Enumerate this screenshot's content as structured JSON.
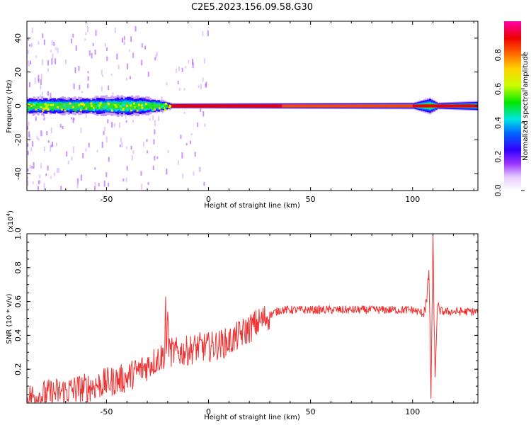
{
  "title": "C2E5.2023.156.09.58.G30",
  "chart_data": [
    {
      "type": "heatmap",
      "name": "spectrogram",
      "xlabel": "Height of straight line (km)",
      "ylabel": "Frequency (Hz)",
      "xlim": [
        -89,
        132
      ],
      "ylim": [
        -50,
        50
      ],
      "xticks": [
        -50,
        0,
        50,
        100
      ],
      "yticks": [
        -40,
        -20,
        0,
        20,
        40
      ],
      "colorbar": {
        "label": "Normalized spectral amplitude",
        "ticks": [
          "0.0",
          "0.2",
          "0.4",
          "0.6",
          "0.8"
        ],
        "range": [
          0,
          1
        ]
      },
      "band_half_width_hz": [
        {
          "x": -89,
          "w": 5
        },
        {
          "x": -60,
          "w": 5
        },
        {
          "x": -40,
          "w": 6
        },
        {
          "x": -30,
          "w": 5
        },
        {
          "x": -22,
          "w": 3
        },
        {
          "x": -18,
          "w": 1.5
        },
        {
          "x": 100,
          "w": 2
        },
        {
          "x": 108,
          "w": 5
        },
        {
          "x": 112,
          "w": 2
        },
        {
          "x": 132,
          "w": 3
        }
      ]
    },
    {
      "type": "line",
      "name": "snr",
      "xlabel": "Height of straight line (km)",
      "ylabel": "SNR (10 * v/v)",
      "y_multiplier": "(x10^4)",
      "xlim": [
        -89,
        132
      ],
      "ylim": [
        0,
        1.0
      ],
      "xticks": [
        -50,
        0,
        50,
        100
      ],
      "yticks": [
        "0.2",
        "0.4",
        "0.6",
        "0.8",
        "1.0"
      ],
      "color": "#ee3333",
      "series": [
        {
          "x": [
            -89,
            -80,
            -70,
            -60,
            -50,
            -40,
            -30,
            -25,
            -20,
            -15,
            -10,
            -5,
            0,
            10,
            20,
            30,
            35,
            40,
            50,
            60,
            70,
            80,
            90,
            100,
            105,
            107,
            108,
            109,
            110,
            111,
            112,
            115,
            120,
            132
          ],
          "y": [
            0.03,
            0.05,
            0.07,
            0.09,
            0.12,
            0.15,
            0.22,
            0.26,
            0.3,
            0.3,
            0.31,
            0.33,
            0.33,
            0.36,
            0.44,
            0.52,
            0.55,
            0.55,
            0.55,
            0.55,
            0.55,
            0.55,
            0.55,
            0.55,
            0.53,
            0.6,
            0.8,
            0.05,
            0.95,
            0.12,
            0.55,
            0.54,
            0.54,
            0.54
          ]
        }
      ]
    }
  ]
}
